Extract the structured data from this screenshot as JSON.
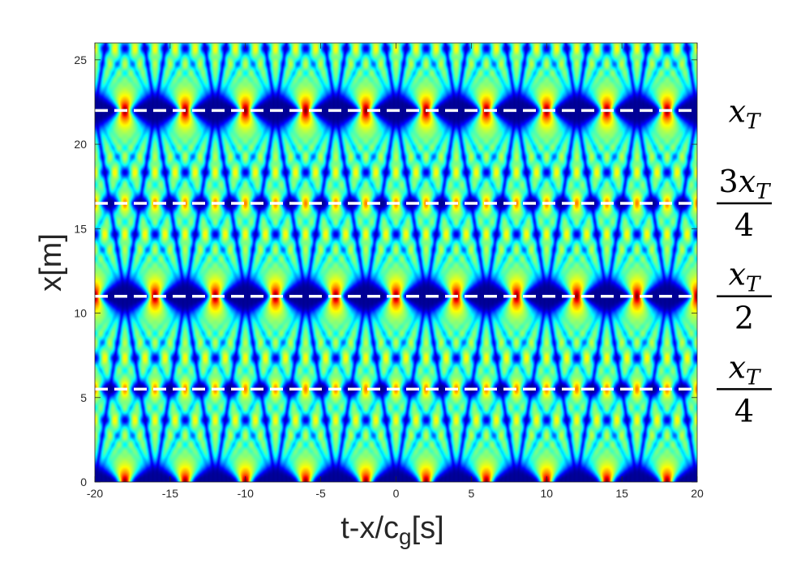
{
  "chart_data": {
    "type": "heatmap",
    "title": "",
    "xlabel": "t-x/c",
    "xlabel_sub": "g",
    "xlabel_suffix": "[s]",
    "ylabel": "x[m]",
    "xlim": [
      -20,
      20
    ],
    "ylim": [
      0,
      26
    ],
    "x_ticks": [
      -20,
      -15,
      -10,
      -5,
      0,
      5,
      10,
      15,
      20
    ],
    "y_ticks": [
      0,
      5,
      10,
      15,
      20,
      25
    ],
    "colormap": "jet",
    "colormap_stops": [
      "#00008f",
      "#0000ff",
      "#00ffff",
      "#ffff00",
      "#ff0000",
      "#800000"
    ],
    "field": {
      "temporal_period_s": 4,
      "talbot_distance_m": 22,
      "peak_times_at_x0_s": [
        -18,
        -14,
        -10,
        -6,
        -2,
        2,
        6,
        10,
        14,
        18
      ],
      "peak_times_at_half_talbot_s": [
        -16,
        -12,
        -8,
        -4,
        0,
        4,
        8,
        12,
        16
      ]
    },
    "reference_lines": [
      {
        "y": 22,
        "label_num": "x",
        "label_sub": "T",
        "label_prefix": "",
        "label_den": ""
      },
      {
        "y": 16.5,
        "label_num": "x",
        "label_sub": "T",
        "label_prefix": "3",
        "label_den": "4"
      },
      {
        "y": 11,
        "label_num": "x",
        "label_sub": "T",
        "label_prefix": "",
        "label_den": "2"
      },
      {
        "y": 5.5,
        "label_num": "x",
        "label_sub": "T",
        "label_prefix": "",
        "label_den": "4"
      }
    ],
    "reference_line_style": {
      "color": "#ffffff",
      "dash": "dashed"
    },
    "grid": false,
    "legend": "none"
  }
}
